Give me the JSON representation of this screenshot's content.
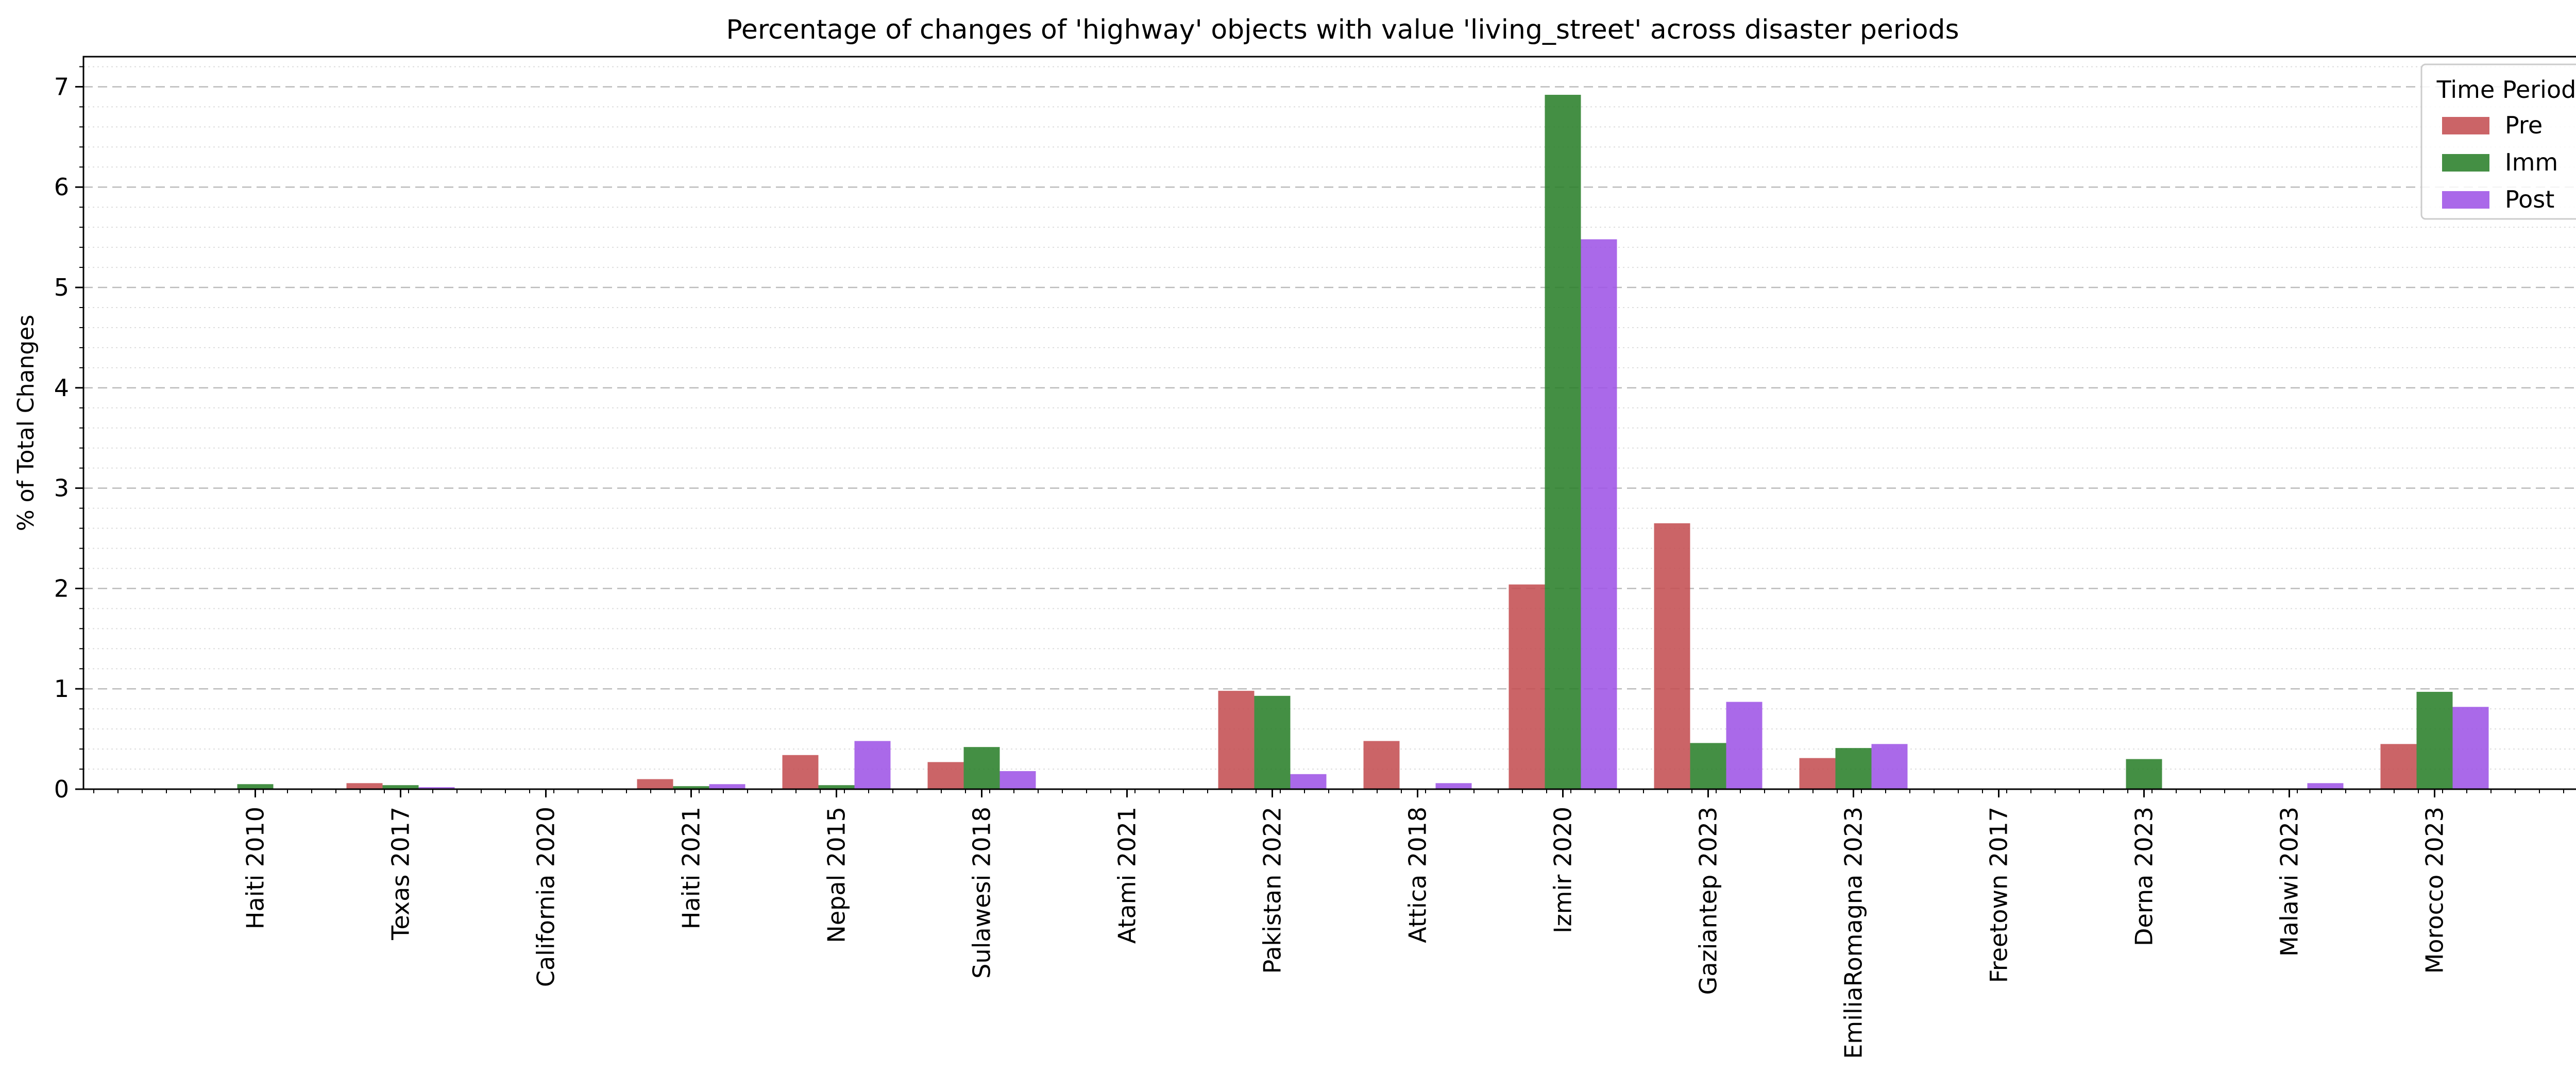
{
  "chart_data": {
    "type": "bar",
    "title": "Percentage of changes of 'highway' objects with value 'living_street' across disaster periods",
    "xlabel": "",
    "ylabel": "% of Total Changes",
    "ylim": [
      0,
      7.3
    ],
    "yticks": [
      0,
      1,
      2,
      3,
      4,
      5,
      6,
      7
    ],
    "grid": true,
    "legend": {
      "title": "Time Period",
      "placement": "top-right"
    },
    "categories": [
      "Haiti 2010",
      "Texas 2017",
      "California 2020",
      "Haiti 2021",
      "Nepal 2015",
      "Sulawesi 2018",
      "Atami 2021",
      "Pakistan 2022",
      "Attica 2018",
      "Izmir 2020",
      "Gaziantep 2023",
      "EmiliaRomagna 2023",
      "Freetown 2017",
      "Derna 2023",
      "Malawi 2023",
      "Morocco 2023"
    ],
    "series": [
      {
        "name": "Pre",
        "color": "#c44e52",
        "values": [
          0,
          0.06,
          0,
          0.1,
          0.34,
          0.27,
          0,
          0.98,
          0.48,
          2.04,
          2.65,
          0.31,
          0,
          0,
          0,
          0.45
        ]
      },
      {
        "name": "Imm",
        "color": "#2a7f2a",
        "values": [
          0.05,
          0.04,
          0,
          0.03,
          0.04,
          0.42,
          0,
          0.93,
          0,
          6.92,
          0.46,
          0.41,
          0,
          0.3,
          0,
          0.97
        ]
      },
      {
        "name": "Post",
        "color": "#9e54e6",
        "values": [
          0,
          0.02,
          0,
          0.05,
          0.48,
          0.18,
          0,
          0.15,
          0.06,
          5.48,
          0.87,
          0.45,
          0,
          0,
          0.06,
          0.82
        ]
      }
    ]
  }
}
